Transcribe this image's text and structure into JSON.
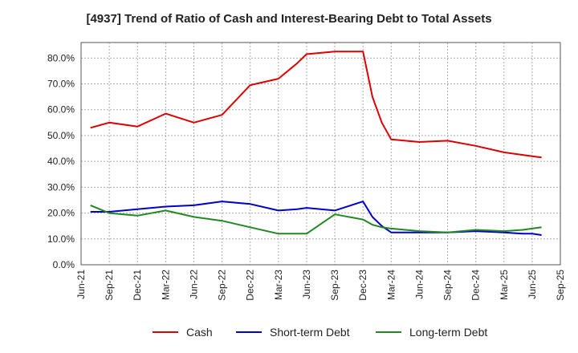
{
  "chart_data": {
    "type": "line",
    "title": "[4937]  Trend of Ratio of Cash and Interest-Bearing Debt to Total Assets",
    "xlabel": "",
    "ylabel": "",
    "x_ticks": [
      "Jun-21",
      "Sep-21",
      "Dec-21",
      "Mar-22",
      "Jun-22",
      "Sep-22",
      "Dec-22",
      "Mar-23",
      "Jun-23",
      "Sep-23",
      "Dec-23",
      "Mar-24",
      "Jun-24",
      "Sep-24",
      "Dec-24",
      "Mar-25",
      "Jun-25",
      "Sep-25"
    ],
    "y_ticks": [
      "0.0%",
      "10.0%",
      "20.0%",
      "30.0%",
      "40.0%",
      "50.0%",
      "60.0%",
      "70.0%",
      "80.0%"
    ],
    "ylim": [
      0,
      86
    ],
    "grid": true,
    "legend_position": "bottom",
    "x": [
      0.333,
      1,
      2,
      3,
      4,
      5,
      6,
      7,
      7.667,
      8,
      9,
      10,
      10.333,
      10.667,
      11,
      12,
      13,
      14,
      15,
      15.667,
      16,
      16.333,
      17
    ],
    "series": [
      {
        "name": "Cash",
        "color": "#dd0000",
        "values": [
          53,
          55,
          53.5,
          58.5,
          55,
          58,
          69.5,
          72,
          78,
          81.5,
          82.5,
          82.5,
          65,
          55,
          48.5,
          47.5,
          48,
          46,
          43.5,
          42.5,
          42,
          41.5,
          null
        ]
      },
      {
        "name": "Short-term Debt",
        "color": "#0000cc",
        "values": [
          20.5,
          20.5,
          21.5,
          22.5,
          23,
          24.5,
          23.5,
          21,
          21.5,
          22,
          21,
          24.5,
          18.5,
          15,
          12.5,
          12.5,
          12.5,
          13,
          12.5,
          12,
          12,
          11.5,
          null
        ]
      },
      {
        "name": "Long-term Debt",
        "color": "#228822",
        "values": [
          23,
          20,
          19,
          21,
          18.5,
          17,
          14.5,
          12,
          12,
          12,
          19.5,
          17.5,
          15.5,
          14.5,
          14,
          13,
          12.5,
          13.5,
          13,
          13.5,
          14,
          14.5,
          null
        ]
      }
    ]
  }
}
